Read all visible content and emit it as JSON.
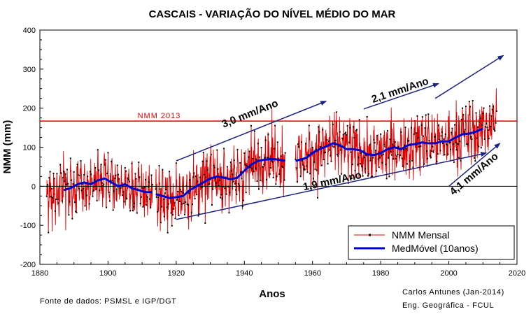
{
  "chart_data": {
    "type": "line",
    "title": "CASCAIS - VARIAÇÃO DO NÍVEL MÉDIO DO MAR",
    "xlabel": "Anos",
    "ylabel": "NMM (mm)",
    "xlim": [
      1880,
      2020
    ],
    "ylim": [
      -200,
      400
    ],
    "xticks": [
      1880,
      1900,
      1920,
      1940,
      1960,
      1980,
      2000,
      2020
    ],
    "yticks": [
      -200,
      -100,
      0,
      100,
      200,
      300,
      400
    ],
    "grid": false,
    "legend_position": "bottom-right",
    "reference_line": {
      "y": 167,
      "label": "NMM 2013",
      "color": "#e00000"
    },
    "zero_line": 0,
    "series": [
      {
        "name": "NMM Mensal",
        "color": "#e00000",
        "marker_color": "#000000",
        "segments": [
          {
            "x_start": 1882,
            "x_end": 1913,
            "base": [
              [
                1882,
                -40
              ],
              [
                1884,
                -15
              ],
              [
                1886,
                -5
              ],
              [
                1888,
                0
              ],
              [
                1890,
                5
              ],
              [
                1892,
                5
              ],
              [
                1894,
                0
              ],
              [
                1896,
                5
              ],
              [
                1898,
                20
              ],
              [
                1900,
                10
              ],
              [
                1902,
                -5
              ],
              [
                1904,
                0
              ],
              [
                1906,
                -5
              ],
              [
                1908,
                -10
              ],
              [
                1910,
                -15
              ],
              [
                1913,
                -15
              ]
            ],
            "spread": 55
          },
          {
            "x_start": 1914,
            "x_end": 1952,
            "base": [
              [
                1914,
                -20
              ],
              [
                1916,
                -25
              ],
              [
                1918,
                -30
              ],
              [
                1920,
                -30
              ],
              [
                1922,
                -25
              ],
              [
                1924,
                -10
              ],
              [
                1926,
                0
              ],
              [
                1928,
                10
              ],
              [
                1930,
                20
              ],
              [
                1932,
                25
              ],
              [
                1934,
                20
              ],
              [
                1936,
                15
              ],
              [
                1938,
                20
              ],
              [
                1940,
                40
              ],
              [
                1942,
                55
              ],
              [
                1944,
                65
              ],
              [
                1946,
                70
              ],
              [
                1948,
                75
              ],
              [
                1950,
                70
              ],
              [
                1952,
                65
              ]
            ],
            "spread": 60
          },
          {
            "x_start": 1955,
            "x_end": 2014,
            "base": [
              [
                1955,
                65
              ],
              [
                1958,
                70
              ],
              [
                1960,
                85
              ],
              [
                1962,
                95
              ],
              [
                1964,
                100
              ],
              [
                1966,
                110
              ],
              [
                1968,
                105
              ],
              [
                1970,
                95
              ],
              [
                1972,
                95
              ],
              [
                1974,
                90
              ],
              [
                1976,
                80
              ],
              [
                1978,
                80
              ],
              [
                1980,
                85
              ],
              [
                1982,
                95
              ],
              [
                1984,
                100
              ],
              [
                1986,
                95
              ],
              [
                1988,
                105
              ],
              [
                1990,
                110
              ],
              [
                1992,
                115
              ],
              [
                1994,
                110
              ],
              [
                1996,
                110
              ],
              [
                1998,
                115
              ],
              [
                2000,
                115
              ],
              [
                2002,
                125
              ],
              [
                2004,
                135
              ],
              [
                2006,
                135
              ],
              [
                2008,
                140
              ],
              [
                2010,
                150
              ],
              [
                2012,
                160
              ],
              [
                2014,
                170
              ]
            ],
            "spread": 60
          }
        ]
      },
      {
        "name": "MedMóvel (10anos)",
        "color": "#0000cc",
        "segments": [
          [
            [
              1887,
              -10
            ],
            [
              1889,
              -5
            ],
            [
              1891,
              5
            ],
            [
              1893,
              10
            ],
            [
              1895,
              5
            ],
            [
              1897,
              15
            ],
            [
              1899,
              20
            ],
            [
              1901,
              10
            ],
            [
              1903,
              0
            ],
            [
              1905,
              5
            ],
            [
              1907,
              -5
            ],
            [
              1909,
              -10
            ],
            [
              1911,
              -15
            ],
            [
              1913,
              -15
            ]
          ],
          [
            [
              1914,
              -20
            ],
            [
              1916,
              -25
            ],
            [
              1918,
              -30
            ],
            [
              1920,
              -28
            ],
            [
              1922,
              -25
            ],
            [
              1924,
              -10
            ],
            [
              1926,
              0
            ],
            [
              1928,
              10
            ],
            [
              1930,
              20
            ],
            [
              1932,
              25
            ],
            [
              1934,
              22
            ],
            [
              1936,
              18
            ],
            [
              1938,
              22
            ],
            [
              1940,
              40
            ],
            [
              1942,
              55
            ],
            [
              1944,
              65
            ],
            [
              1946,
              68
            ],
            [
              1948,
              70
            ],
            [
              1950,
              68
            ],
            [
              1952,
              65
            ]
          ],
          [
            [
              1955,
              65
            ],
            [
              1958,
              72
            ],
            [
              1960,
              85
            ],
            [
              1962,
              95
            ],
            [
              1964,
              102
            ],
            [
              1966,
              110
            ],
            [
              1968,
              105
            ],
            [
              1970,
              95
            ],
            [
              1972,
              95
            ],
            [
              1974,
              92
            ],
            [
              1976,
              82
            ],
            [
              1978,
              80
            ],
            [
              1980,
              85
            ],
            [
              1982,
              95
            ],
            [
              1984,
              100
            ],
            [
              1986,
              95
            ],
            [
              1988,
              105
            ],
            [
              1990,
              108
            ],
            [
              1992,
              112
            ],
            [
              1994,
              110
            ],
            [
              1996,
              110
            ],
            [
              1998,
              115
            ],
            [
              2000,
              115
            ],
            [
              2002,
              125
            ],
            [
              2004,
              133
            ],
            [
              2006,
              135
            ],
            [
              2008,
              140
            ],
            [
              2010,
              148
            ]
          ]
        ]
      }
    ],
    "trend_arrows": [
      {
        "label": "3,0 mm/Ano",
        "from": [
          1920,
          65
        ],
        "to": [
          1964,
          218
        ],
        "label_at": [
          1942,
          178
        ]
      },
      {
        "label": "2,1 mm/Ano",
        "from": [
          1975,
          198
        ],
        "to": [
          1997,
          263
        ],
        "label_at": [
          1986,
          238
        ]
      },
      {
        "label": "1,9 mm/Ano",
        "from": [
          1920,
          -85
        ],
        "to": [
          2011,
          85
        ],
        "label_at": [
          1966,
          5
        ]
      },
      {
        "label": "4,1 mm/Ano",
        "from": [
          2000,
          0
        ],
        "to": [
          2015,
          110
        ],
        "label_at": [
          2008,
          25
        ]
      },
      {
        "label": "",
        "from": [
          1996,
          225
        ],
        "to": [
          2016,
          335
        ]
      }
    ]
  },
  "footer": {
    "source": "Fonte de dados: PSMSL e IGP/DGT",
    "author": "Carlos Antunes (Jan-2014)",
    "affiliation": "Eng. Geográfica - FCUL"
  }
}
